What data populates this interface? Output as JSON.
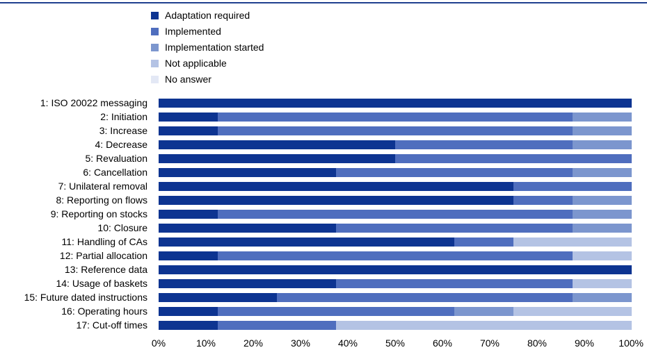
{
  "chart_data": {
    "type": "bar",
    "orientation": "horizontal",
    "stacked": true,
    "percent": true,
    "categories": [
      "1: ISO 20022 messaging",
      "2: Initiation",
      "3: Increase",
      "4: Decrease",
      "5: Revaluation",
      "6: Cancellation",
      "7: Unilateral removal",
      "8: Reporting on flows",
      "9: Reporting on stocks",
      "10: Closure",
      "11: Handling of CAs",
      "12: Partial allocation",
      "13: Reference data",
      "14: Usage of baskets",
      "15: Future dated instructions",
      "16: Operating hours",
      "17: Cut-off times"
    ],
    "series": [
      {
        "name": "Adaptation required",
        "color": "#0d3491",
        "values": [
          100,
          12.5,
          12.5,
          50,
          50,
          37.5,
          75,
          75,
          12.5,
          37.5,
          62.5,
          12.5,
          100,
          37.5,
          25,
          12.5,
          12.5
        ]
      },
      {
        "name": "Implemented",
        "color": "#4f6ebe",
        "values": [
          0,
          75,
          75,
          37.5,
          50,
          50,
          25,
          12.5,
          75,
          50,
          12.5,
          75,
          0,
          50,
          62.5,
          50,
          25
        ]
      },
      {
        "name": "Implementation started",
        "color": "#7c96ce",
        "values": [
          0,
          12.5,
          12.5,
          12.5,
          0,
          12.5,
          0,
          12.5,
          12.5,
          12.5,
          0,
          0,
          0,
          0,
          12.5,
          12.5,
          0
        ]
      },
      {
        "name": "Not applicable",
        "color": "#b4c3e4",
        "values": [
          0,
          0,
          0,
          0,
          0,
          0,
          0,
          0,
          0,
          0,
          25,
          12.5,
          0,
          12.5,
          0,
          25,
          62.5
        ]
      },
      {
        "name": "No answer",
        "color": "#e3e8f5",
        "values": [
          0,
          0,
          0,
          0,
          0,
          0,
          0,
          0,
          0,
          0,
          0,
          0,
          0,
          0,
          0,
          0,
          0
        ]
      }
    ],
    "xlim": [
      0,
      100
    ],
    "xticks": [
      "0%",
      "10%",
      "20%",
      "30%",
      "40%",
      "50%",
      "60%",
      "70%",
      "80%",
      "90%",
      "100%"
    ],
    "grid": false,
    "legend_position": "top"
  }
}
